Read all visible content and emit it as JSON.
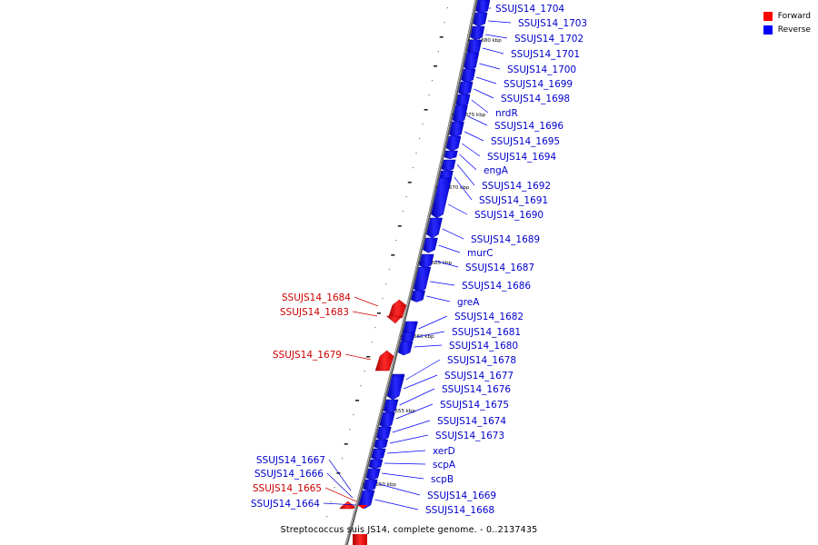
{
  "legend": {
    "forward": {
      "label": "Forward",
      "color": "#ff0000"
    },
    "reverse": {
      "label": "Reverse",
      "color": "#0000ff"
    }
  },
  "caption": "Streptococcus suis JS14, complete genome. - 0..2137435",
  "tick_labels": [
    "1680 kbp",
    "1675 kbp",
    "1670 kbp",
    "1665 kbp",
    "1660 kbp",
    "1655 kbp",
    "1650 kbp"
  ],
  "reverse_genes": [
    "SSUJS14_1704",
    "SSUJS14_1703",
    "SSUJS14_1702",
    "SSUJS14_1701",
    "SSUJS14_1700",
    "SSUJS14_1699",
    "SSUJS14_1698",
    "nrdR",
    "SSUJS14_1696",
    "SSUJS14_1695",
    "SSUJS14_1694",
    "engA",
    "SSUJS14_1692",
    "SSUJS14_1691",
    "SSUJS14_1690",
    "SSUJS14_1689",
    "murC",
    "SSUJS14_1687",
    "SSUJS14_1686",
    "greA",
    "SSUJS14_1682",
    "SSUJS14_1681",
    "SSUJS14_1680",
    "SSUJS14_1678",
    "SSUJS14_1677",
    "SSUJS14_1676",
    "SSUJS14_1675",
    "SSUJS14_1674",
    "SSUJS14_1673",
    "xerD",
    "scpA",
    "scpB",
    "SSUJS14_1669",
    "SSUJS14_1668"
  ],
  "forward_genes": [
    "SSUJS14_1684",
    "SSUJS14_1683",
    "SSUJS14_1679",
    "SSUJS14_1667",
    "SSUJS14_1666",
    "SSUJS14_1665",
    "SSUJS14_1664"
  ],
  "forward_gene_colors": [
    "#cc0000",
    "#cc0000",
    "#cc0000",
    "#0000cc",
    "#0000cc",
    "#cc0000",
    "#0000cc"
  ]
}
